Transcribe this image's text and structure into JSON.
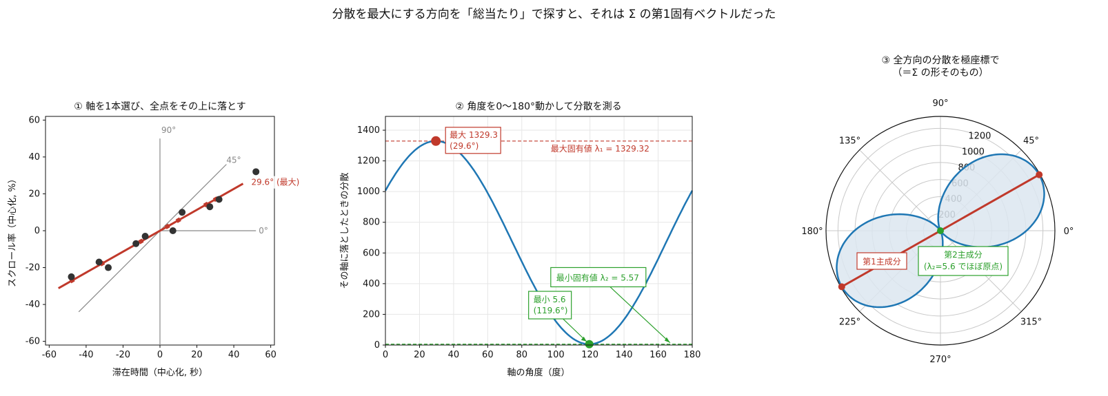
{
  "figure_title": "分散を最大にする方向を「総当たり」で探すと、それは Σ の第1固有ベクトルだった",
  "colors": {
    "red": "#c0392b",
    "blue": "#1f77b4",
    "green": "#2ca02c",
    "dark_point": "#333333",
    "grid": "#e6e6e6",
    "guide_line": "#888888",
    "fill": "#dce6f0"
  },
  "chart_data": [
    {
      "type": "scatter",
      "title": "① 軸を1本選び、全点をその上に落とす",
      "xlabel": "滞在時間（中心化, 秒）",
      "ylabel": "スクロール率（中心化, %）",
      "xlim": [
        -62,
        62
      ],
      "ylim": [
        -62,
        62
      ],
      "x_ticks": [
        -60,
        -40,
        -20,
        0,
        20,
        40,
        60
      ],
      "y_ticks": [
        -60,
        -40,
        -20,
        0,
        20,
        40,
        60
      ],
      "x_tick_labels": [
        "-60",
        "-40",
        "-20",
        "0",
        "20",
        "40",
        "60"
      ],
      "y_tick_labels": [
        "-60",
        "-40",
        "-20",
        "0",
        "20",
        "40",
        "60"
      ],
      "points": [
        {
          "x": -48,
          "y": -25
        },
        {
          "x": -33,
          "y": -17
        },
        {
          "x": -28,
          "y": -20
        },
        {
          "x": -13,
          "y": -7
        },
        {
          "x": -8,
          "y": -3
        },
        {
          "x": 7,
          "y": 0
        },
        {
          "x": 12,
          "y": 10
        },
        {
          "x": 27,
          "y": 13
        },
        {
          "x": 32,
          "y": 17
        },
        {
          "x": 52,
          "y": 32
        }
      ],
      "projected_points": [
        {
          "x": -47.6,
          "y": -27.0
        },
        {
          "x": -31.3,
          "y": -17.8
        },
        {
          "x": -10.3,
          "y": -5.8
        },
        {
          "x": 10.0,
          "y": 5.7
        },
        {
          "x": 25.0,
          "y": 14.2
        },
        {
          "x": 30.2,
          "y": 17.1
        },
        {
          "x": 4.0,
          "y": 2.3
        }
      ],
      "max_axis": {
        "angle_deg": 29.6,
        "label": "29.6° (最大)",
        "from": [
          -55,
          -31.2
        ],
        "to": [
          45,
          25.5
        ]
      },
      "guide_axes": [
        {
          "label": "0°",
          "from": [
            0,
            0
          ],
          "to": [
            52,
            0
          ]
        },
        {
          "label": "45°",
          "from": [
            -44,
            -44
          ],
          "to": [
            36,
            36
          ]
        },
        {
          "label": "90°",
          "from": [
            0,
            -62
          ],
          "to": [
            0,
            50
          ]
        }
      ]
    },
    {
      "type": "line",
      "title": "② 角度を0〜180°動かして分散を測る",
      "xlabel": "軸の角度（度）",
      "ylabel": "その軸に落としたときの分散",
      "xlim": [
        0,
        180
      ],
      "ylim": [
        0,
        1490
      ],
      "x_ticks": [
        0,
        20,
        40,
        60,
        80,
        100,
        120,
        140,
        160,
        180
      ],
      "y_ticks": [
        0,
        200,
        400,
        600,
        800,
        1000,
        1200,
        1400
      ],
      "x_tick_labels": [
        "0",
        "20",
        "40",
        "60",
        "80",
        "100",
        "120",
        "140",
        "160",
        "180"
      ],
      "y_tick_labels": [
        "0",
        "200",
        "400",
        "600",
        "800",
        "1000",
        "1200",
        "1400"
      ],
      "series_x": [
        0,
        10,
        20,
        29.6,
        40,
        50,
        60,
        70,
        80,
        90,
        100,
        110,
        119.6,
        130,
        140,
        150,
        160,
        170,
        180
      ],
      "series_y": [
        1011,
        1162,
        1279,
        1329.3,
        1287,
        1178,
        1011,
        810,
        603,
        422,
        282,
        185,
        5.6,
        47,
        147,
        327,
        560,
        796,
        1011
      ],
      "max": {
        "x": 29.6,
        "y": 1329.3,
        "label_line1": "最大 1329.3",
        "label_line2": "(29.6°)"
      },
      "min": {
        "x": 119.6,
        "y": 5.6,
        "label_line1": "最小 5.6",
        "label_line2": "(119.6°)"
      },
      "hline_max": {
        "y": 1329.32,
        "label": "最大固有値 λ₁ = 1329.32"
      },
      "hline_min": {
        "y": 5.57,
        "label": "最小固有値 λ₂ = 5.57"
      }
    },
    {
      "type": "polar",
      "title_line1": "③ 全方向の分散を極座標で",
      "title_line2": "（＝Σ の形そのもの）",
      "r_max": 1340,
      "r_ticks": [
        200,
        400,
        600,
        800,
        1000,
        1200
      ],
      "r_tick_labels": [
        "200",
        "400",
        "600",
        "800",
        "1000",
        "1200"
      ],
      "angle_ticks": [
        0,
        45,
        90,
        135,
        180,
        225,
        270,
        315
      ],
      "angle_tick_labels": [
        "0°",
        "45°",
        "90°",
        "135°",
        "180°",
        "225°",
        "270°",
        "315°"
      ],
      "lambda1": 1329.32,
      "lambda2": 5.57,
      "principal_angle_deg": 29.6,
      "pc1_label": "第1主成分",
      "pc2_label_line1": "第2主成分",
      "pc2_label_line2": "(λ₂=5.6 でほぼ原点)"
    }
  ]
}
